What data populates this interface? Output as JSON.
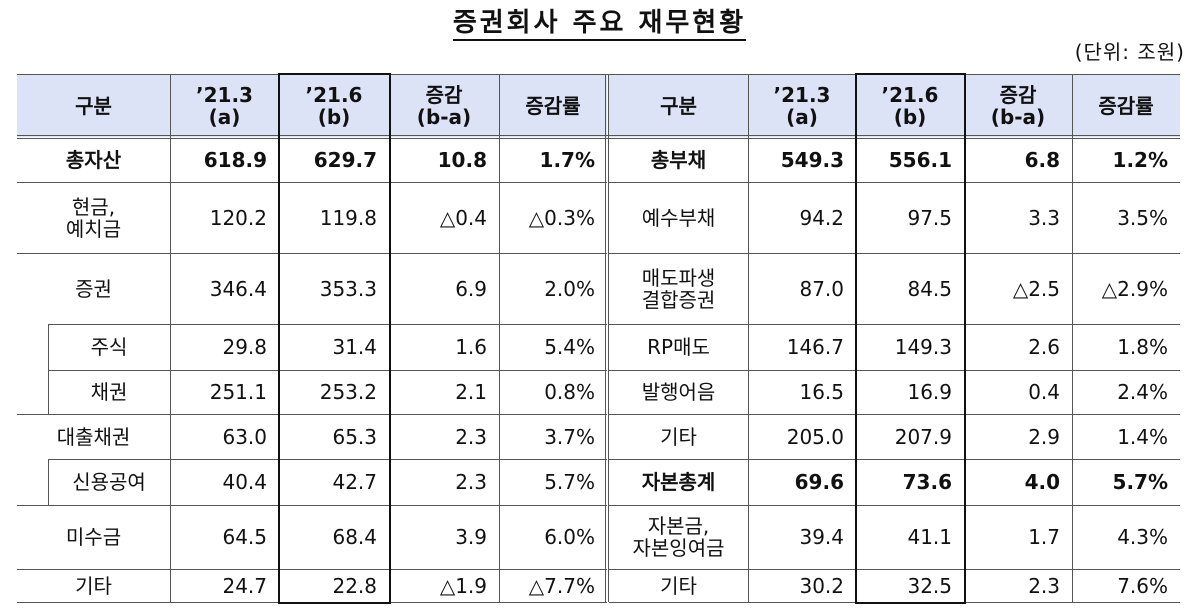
{
  "title": "증권회사 주요 재무현황",
  "unit": "(단위: 조원)",
  "header": {
    "left": [
      "구분",
      "’21.3\n(a)",
      "’21.6\n(b)",
      "증감\n(b-a)",
      "증감률"
    ],
    "right": [
      "구분",
      "’21.3\n(a)",
      "’21.6\n(b)",
      "증감\n(b-a)",
      "증감률"
    ]
  },
  "assets": [
    {
      "label": "총자산",
      "a": "618.9",
      "b": "629.7",
      "diff": "10.8",
      "rate": "1.7%",
      "bold": true
    },
    {
      "label": "현금,\n예치금",
      "a": "120.2",
      "b": "119.8",
      "diff": "△0.4",
      "rate": "△0.3%"
    },
    {
      "label": "증권",
      "a": "346.4",
      "b": "353.3",
      "diff": "6.9",
      "rate": "2.0%"
    },
    {
      "label": "주식",
      "a": "29.8",
      "b": "31.4",
      "diff": "1.6",
      "rate": "5.4%"
    },
    {
      "label": "채권",
      "a": "251.1",
      "b": "253.2",
      "diff": "2.1",
      "rate": "0.8%"
    },
    {
      "label": "대출채권",
      "a": "63.0",
      "b": "65.3",
      "diff": "2.3",
      "rate": "3.7%"
    },
    {
      "label": "신용공여",
      "a": "40.4",
      "b": "42.7",
      "diff": "2.3",
      "rate": "5.7%"
    },
    {
      "label": "미수금",
      "a": "64.5",
      "b": "68.4",
      "diff": "3.9",
      "rate": "6.0%"
    },
    {
      "label": "기타",
      "a": "24.7",
      "b": "22.8",
      "diff": "△1.9",
      "rate": "△7.7%"
    }
  ],
  "liabilities": [
    {
      "label": "총부채",
      "a": "549.3",
      "b": "556.1",
      "diff": "6.8",
      "rate": "1.2%",
      "bold": true
    },
    {
      "label": "예수부채",
      "a": "94.2",
      "b": "97.5",
      "diff": "3.3",
      "rate": "3.5%"
    },
    {
      "label": "매도파생\n결합증권",
      "a": "87.0",
      "b": "84.5",
      "diff": "△2.5",
      "rate": "△2.9%"
    },
    {
      "label": "RP매도",
      "a": "146.7",
      "b": "149.3",
      "diff": "2.6",
      "rate": "1.8%"
    },
    {
      "label": "발행어음",
      "a": "16.5",
      "b": "16.9",
      "diff": "0.4",
      "rate": "2.4%"
    },
    {
      "label": "기타",
      "a": "205.0",
      "b": "207.9",
      "diff": "2.9",
      "rate": "1.4%"
    },
    {
      "label": "자본총계",
      "a": "69.6",
      "b": "73.6",
      "diff": "4.0",
      "rate": "5.7%",
      "bold": true
    },
    {
      "label": "자본금,\n자본잉여금",
      "a": "39.4",
      "b": "41.1",
      "diff": "1.7",
      "rate": "4.3%"
    },
    {
      "label": "기타",
      "a": "30.2",
      "b": "32.5",
      "diff": "2.3",
      "rate": "7.6%"
    }
  ],
  "colors": {
    "header_bg": "#dde3f7",
    "border": "#555555",
    "highlight_border": "#111111"
  }
}
